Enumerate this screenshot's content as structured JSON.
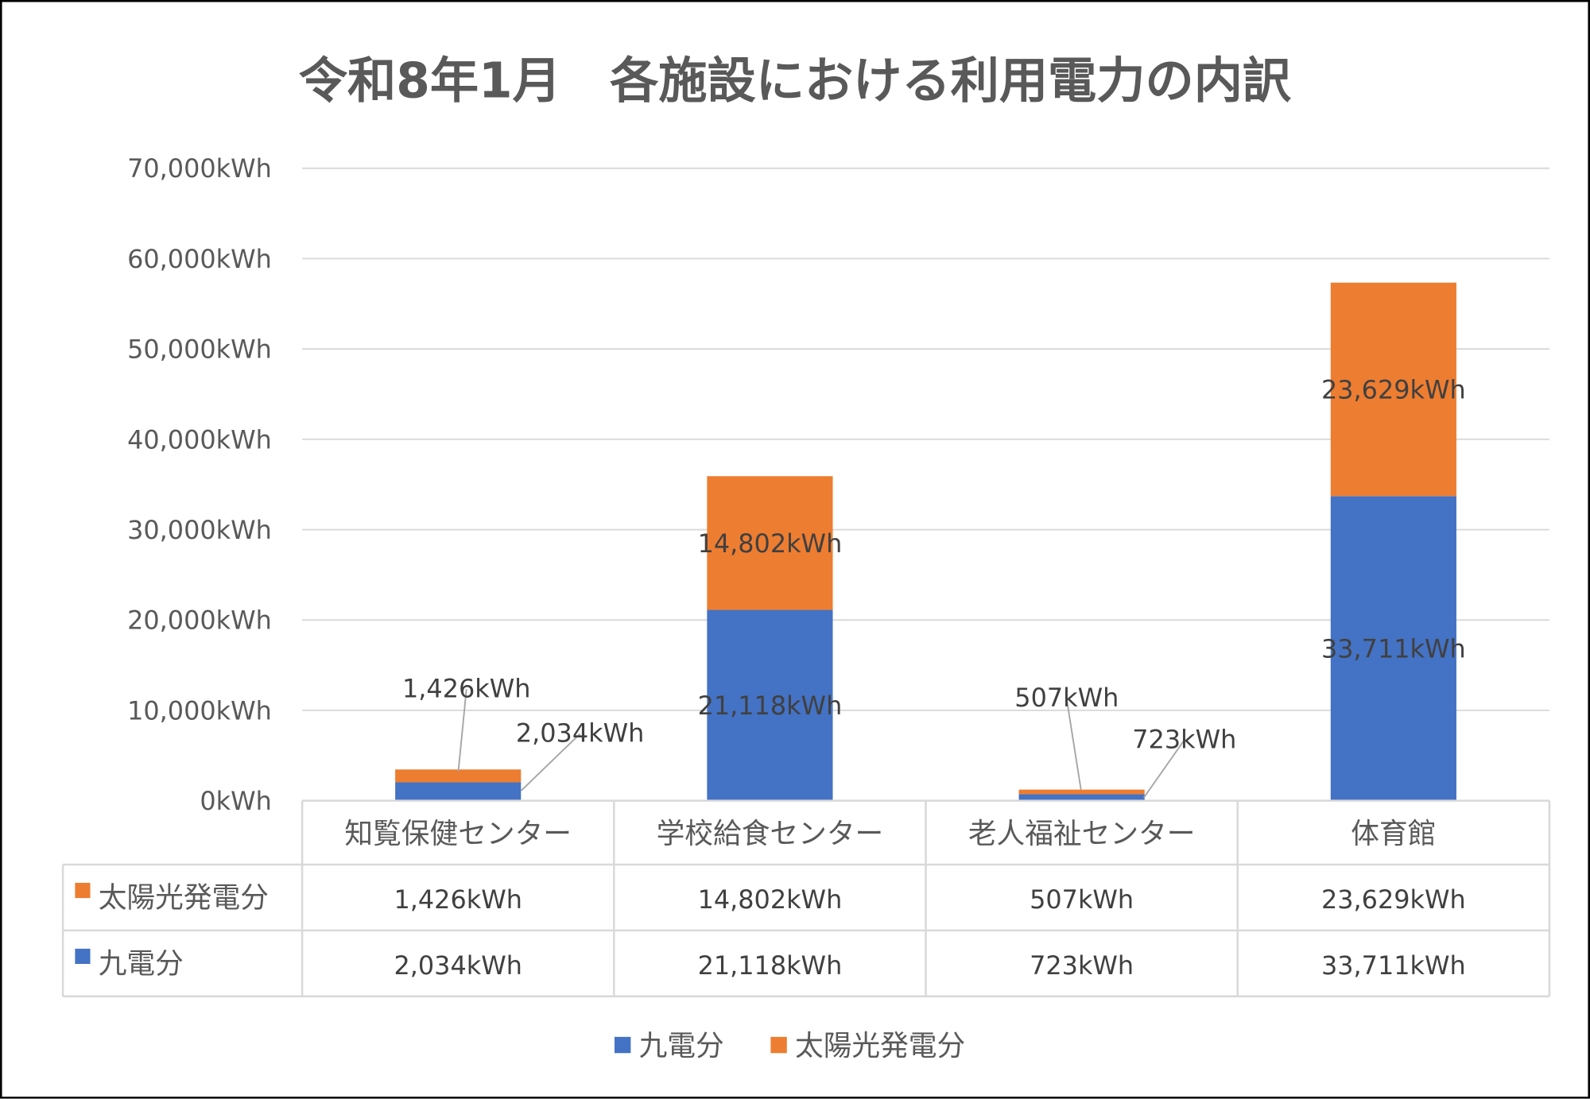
{
  "chart_data": {
    "type": "bar",
    "stacked": true,
    "title": "令和8年1月　各施設における利用電力の内訳",
    "categories": [
      "知覧保健センター",
      "学校給食センター",
      "老人福祉センター",
      "体育館"
    ],
    "series": [
      {
        "name": "九電分",
        "values": [
          2034,
          21118,
          723,
          33711
        ],
        "labels": [
          "2,034kWh",
          "21,118kWh",
          "723kWh",
          "33,711kWh"
        ],
        "color": "#4472C4"
      },
      {
        "name": "太陽光発電分",
        "values": [
          1426,
          14802,
          507,
          23629
        ],
        "labels": [
          "1,426kWh",
          "14,802kWh",
          "507kWh",
          "23,629kWh"
        ],
        "color": "#ED7D31"
      }
    ],
    "ylim": [
      0,
      70000
    ],
    "yticks": [
      "0kWh",
      "10,000kWh",
      "20,000kWh",
      "30,000kWh",
      "40,000kWh",
      "50,000kWh",
      "60,000kWh",
      "70,000kWh"
    ],
    "grid": true,
    "data_table": true,
    "legend": [
      "九電分",
      "太陽光発電分"
    ],
    "legend_position": "bottom"
  }
}
